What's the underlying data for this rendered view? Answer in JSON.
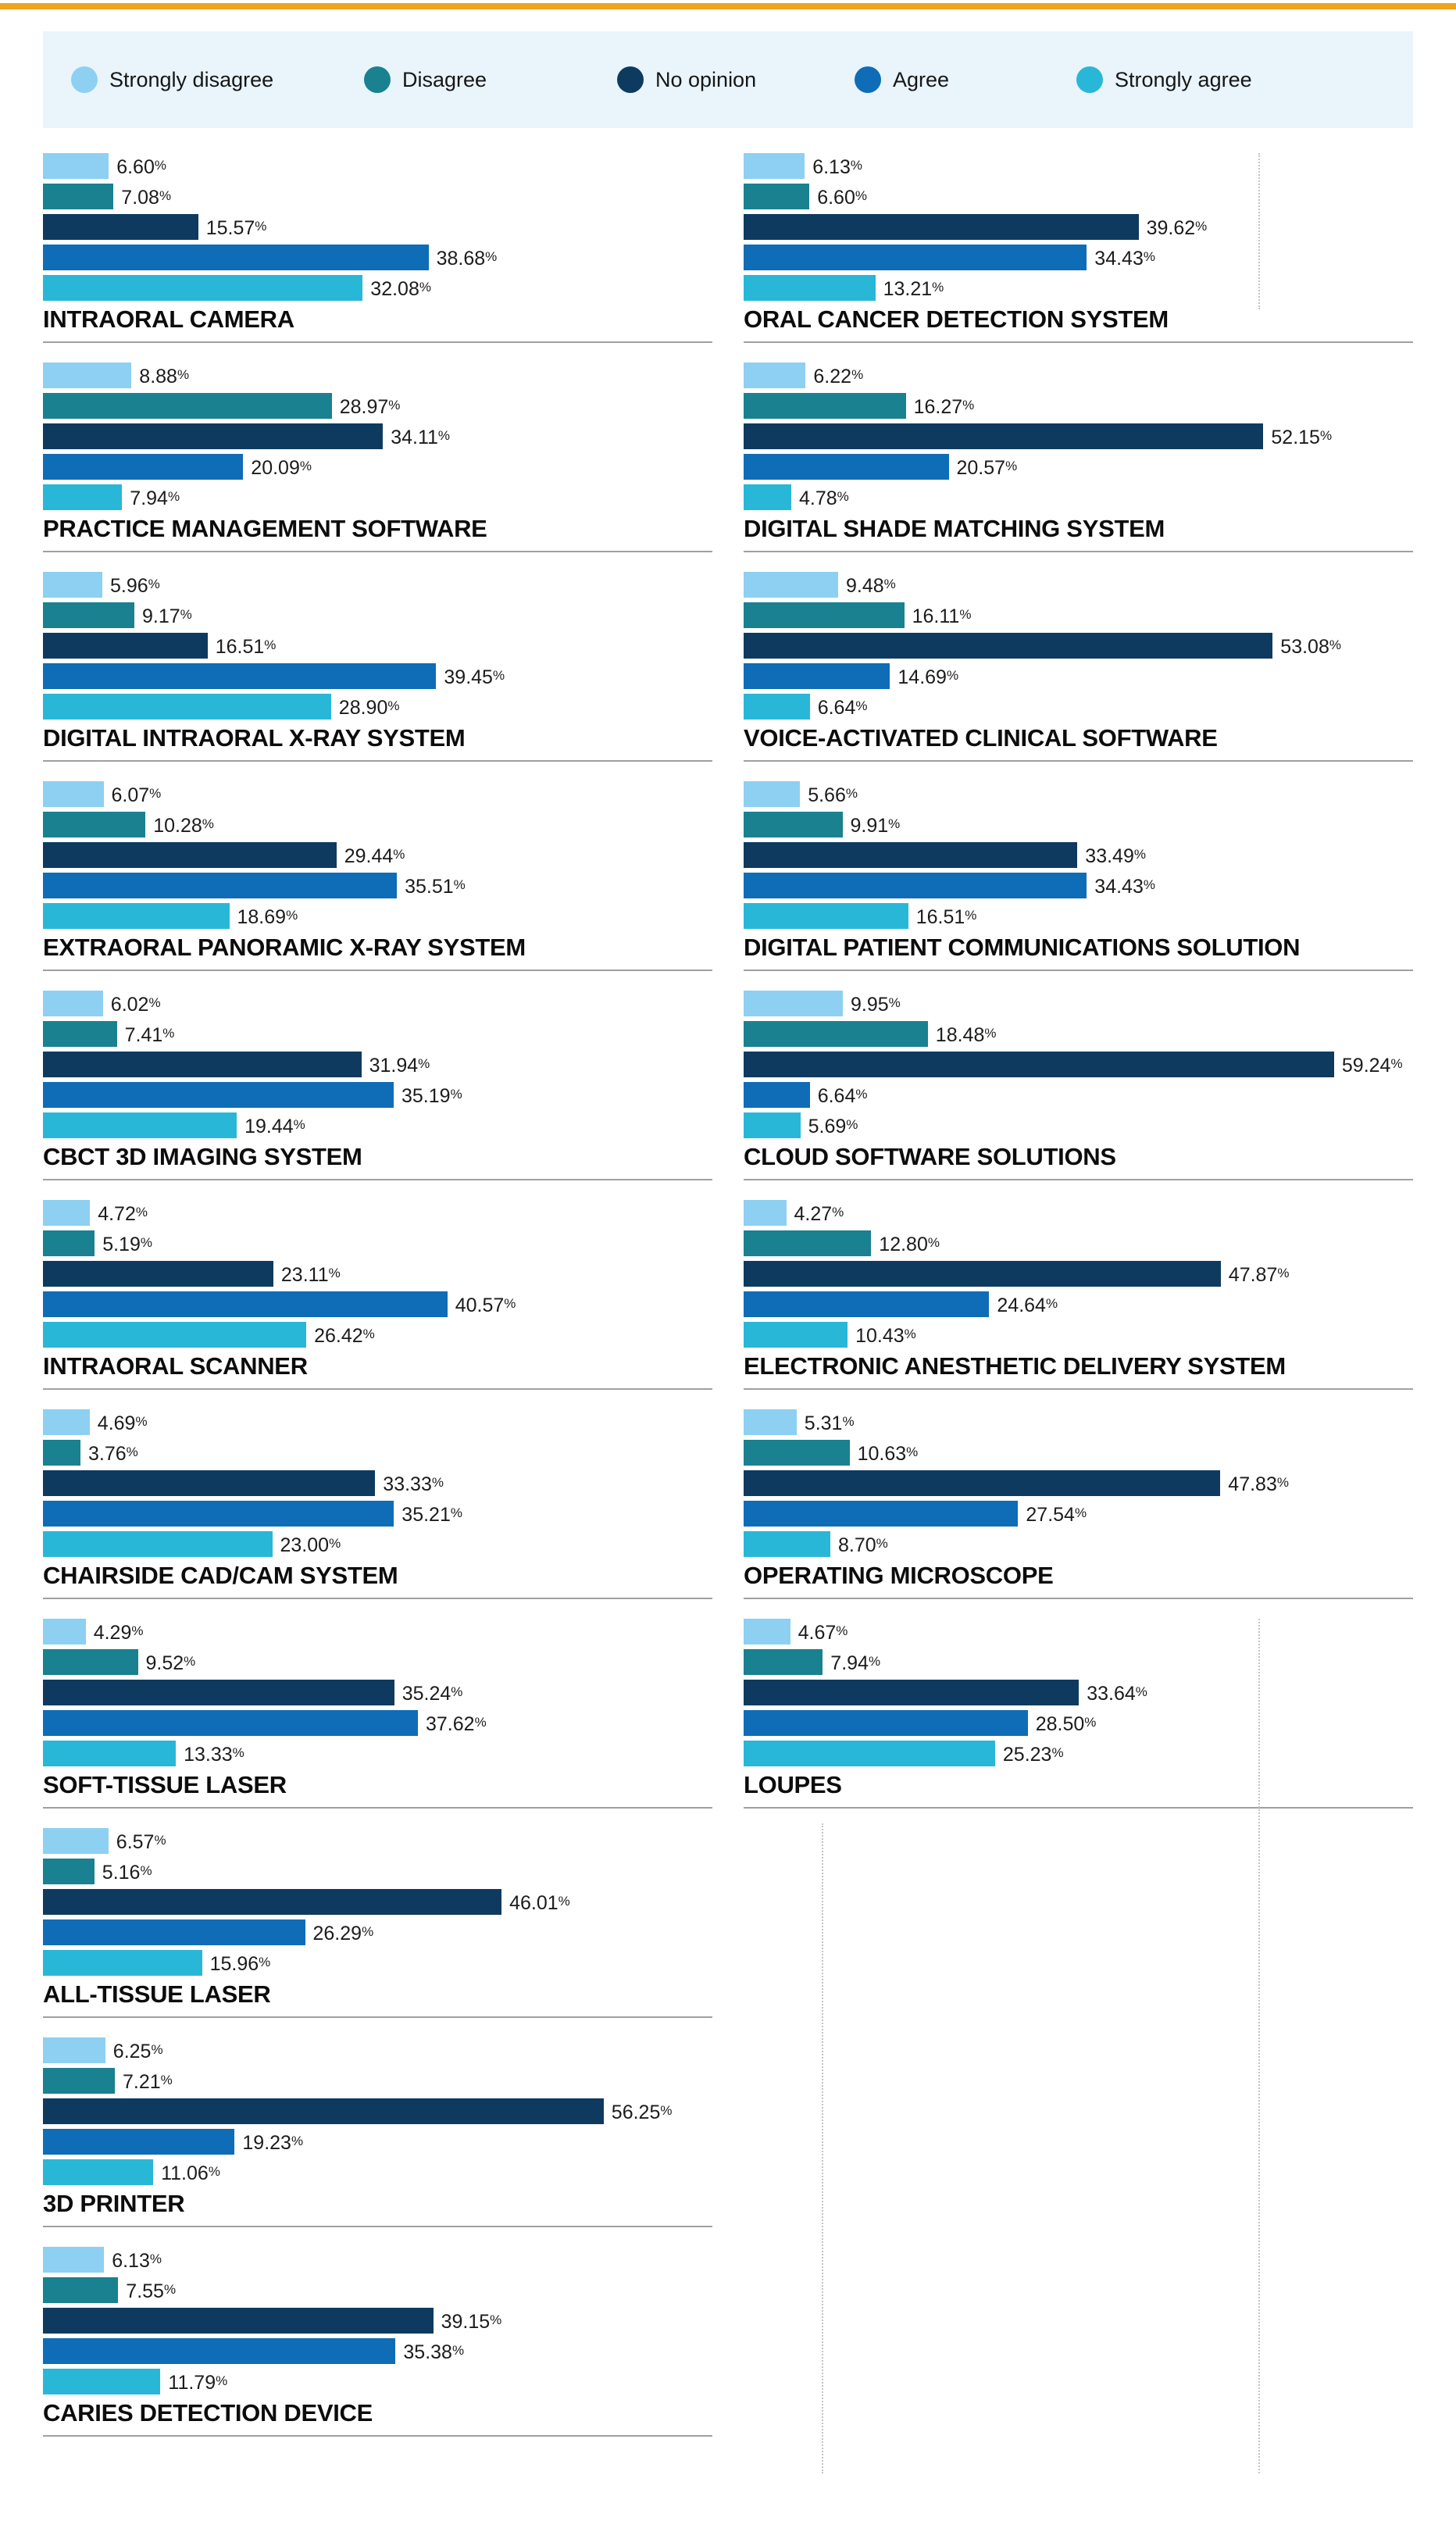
{
  "page": {
    "accent_color": "#f0a31e",
    "legend_background": "#e9f4fb",
    "divider_color": "#a0a0a0"
  },
  "legend": {
    "items": [
      {
        "label": "Strongly disagree",
        "color": "#8dd0f2"
      },
      {
        "label": "Disagree",
        "color": "#19818f"
      },
      {
        "label": "No opinion",
        "color": "#0e3a5f"
      },
      {
        "label": "Agree",
        "color": "#0f6cb6"
      },
      {
        "label": "Strongly agree",
        "color": "#29b7d8"
      }
    ]
  },
  "chart_data": {
    "type": "bar",
    "orientation": "horizontal",
    "unit": "%",
    "axis_max": 100,
    "grid": false,
    "legend_position": "top",
    "series_labels": [
      "Strongly disagree",
      "Disagree",
      "No opinion",
      "Agree",
      "Strongly agree"
    ],
    "series_colors": [
      "#8dd0f2",
      "#19818f",
      "#0e3a5f",
      "#0f6cb6",
      "#29b7d8"
    ],
    "columns": [
      {
        "charts": [
          {
            "title": "INTRAORAL CAMERA",
            "values": [
              6.6,
              7.08,
              15.57,
              38.68,
              32.08
            ]
          },
          {
            "title": "PRACTICE MANAGEMENT SOFTWARE",
            "values": [
              8.88,
              28.97,
              34.11,
              20.09,
              7.94
            ]
          },
          {
            "title": "DIGITAL INTRAORAL X-RAY SYSTEM",
            "values": [
              5.96,
              9.17,
              16.51,
              39.45,
              28.9
            ]
          },
          {
            "title": "EXTRAORAL PANORAMIC X-RAY SYSTEM",
            "values": [
              6.07,
              10.28,
              29.44,
              35.51,
              18.69
            ]
          },
          {
            "title": "CBCT 3D IMAGING SYSTEM",
            "values": [
              6.02,
              7.41,
              31.94,
              35.19,
              19.44
            ]
          },
          {
            "title": "INTRAORAL SCANNER",
            "values": [
              4.72,
              5.19,
              23.11,
              40.57,
              26.42
            ]
          },
          {
            "title": "CHAIRSIDE CAD/CAM SYSTEM",
            "values": [
              4.69,
              3.76,
              33.33,
              35.21,
              23.0
            ]
          },
          {
            "title": "SOFT-TISSUE LASER",
            "values": [
              4.29,
              9.52,
              35.24,
              37.62,
              13.33
            ]
          },
          {
            "title": "ALL-TISSUE LASER",
            "values": [
              6.57,
              5.16,
              46.01,
              26.29,
              15.96
            ]
          },
          {
            "title": "3D PRINTER",
            "values": [
              6.25,
              7.21,
              56.25,
              19.23,
              11.06
            ]
          },
          {
            "title": "CARIES DETECTION DEVICE",
            "values": [
              6.13,
              7.55,
              39.15,
              35.38,
              11.79
            ]
          }
        ]
      },
      {
        "charts": [
          {
            "title": "ORAL CANCER DETECTION SYSTEM",
            "values": [
              6.13,
              6.6,
              39.62,
              34.43,
              13.21
            ]
          },
          {
            "title": "DIGITAL SHADE MATCHING SYSTEM",
            "values": [
              6.22,
              16.27,
              52.15,
              20.57,
              4.78
            ]
          },
          {
            "title": "VOICE-ACTIVATED CLINICAL SOFTWARE",
            "values": [
              9.48,
              16.11,
              53.08,
              14.69,
              6.64
            ]
          },
          {
            "title": "DIGITAL PATIENT COMMUNICATIONS SOLUTION",
            "values": [
              5.66,
              9.91,
              33.49,
              34.43,
              16.51
            ]
          },
          {
            "title": "CLOUD SOFTWARE SOLUTIONS",
            "values": [
              9.95,
              18.48,
              59.24,
              6.64,
              5.69
            ]
          },
          {
            "title": "ELECTRONIC ANESTHETIC DELIVERY SYSTEM",
            "values": [
              4.27,
              12.8,
              47.87,
              24.64,
              10.43
            ]
          },
          {
            "title": "OPERATING MICROSCOPE",
            "values": [
              5.31,
              10.63,
              47.83,
              27.54,
              8.7
            ]
          },
          {
            "title": "LOUPES",
            "values": [
              4.67,
              7.94,
              33.64,
              28.5,
              25.23
            ]
          }
        ]
      }
    ]
  }
}
